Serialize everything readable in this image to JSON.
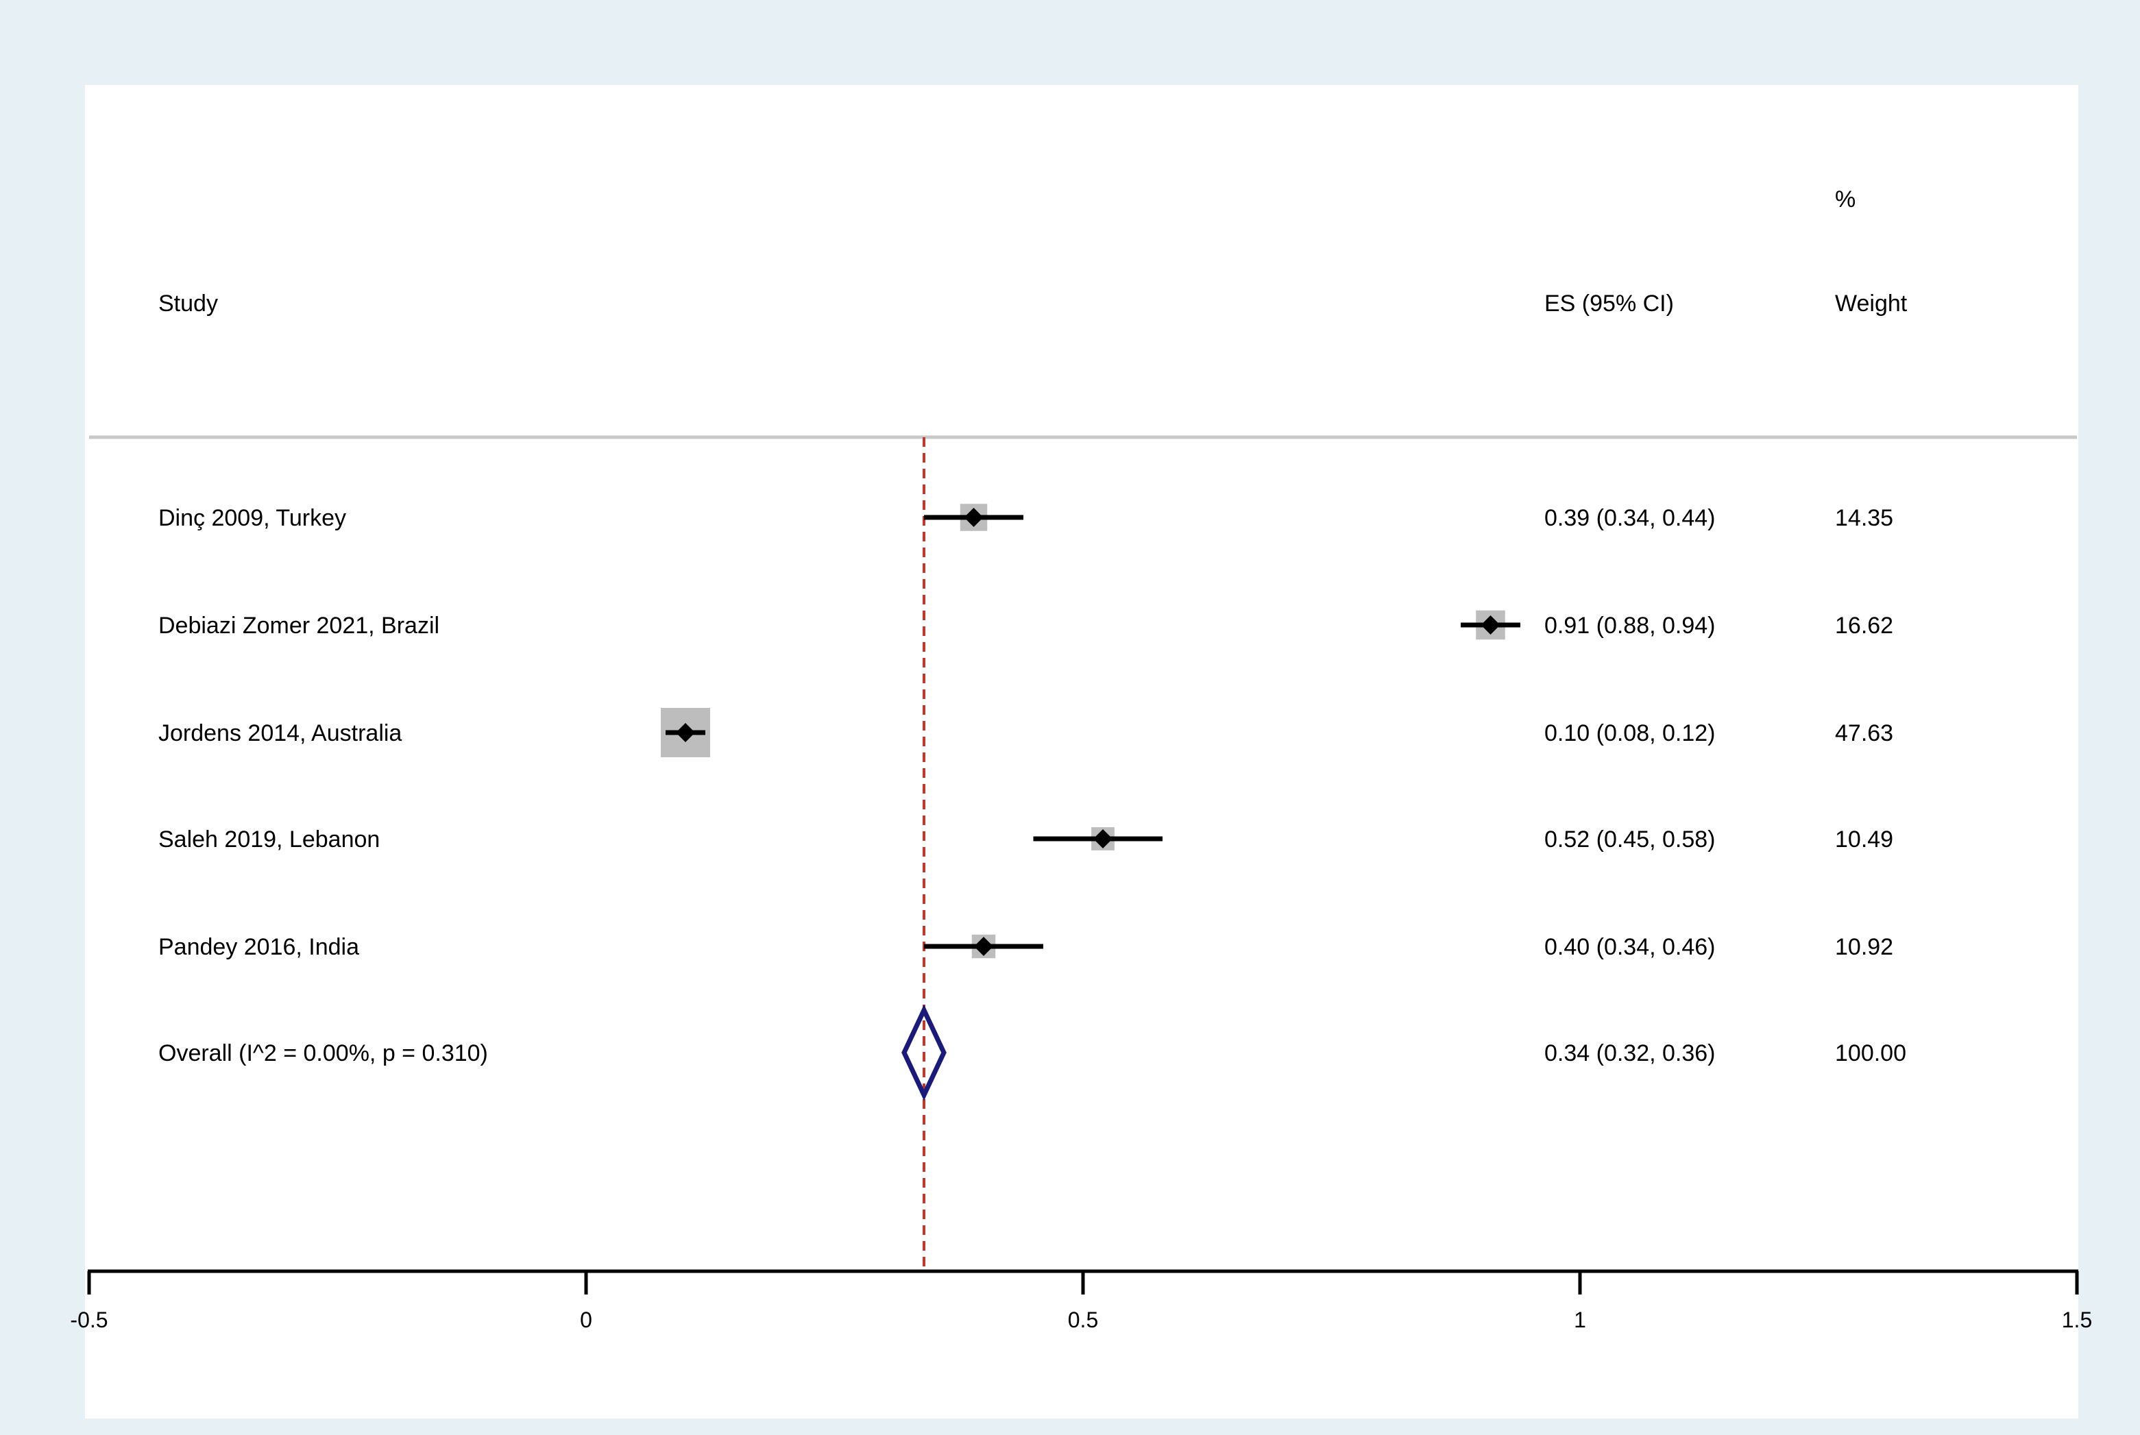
{
  "chart_data": {
    "type": "forest",
    "headers": {
      "study": "Study",
      "es": "ES (95% CI)",
      "weight_top": "%",
      "weight_bottom": "Weight"
    },
    "studies": [
      {
        "label": "Dinç 2009, Turkey",
        "es": 0.39,
        "lo": 0.34,
        "hi": 0.44,
        "es_text": "0.39 (0.34, 0.44)",
        "weight": 14.35,
        "weight_text": "14.35"
      },
      {
        "label": "Debiazi Zomer 2021, Brazil",
        "es": 0.91,
        "lo": 0.88,
        "hi": 0.94,
        "es_text": "0.91 (0.88, 0.94)",
        "weight": 16.62,
        "weight_text": "16.62"
      },
      {
        "label": "Jordens 2014, Australia",
        "es": 0.1,
        "lo": 0.08,
        "hi": 0.12,
        "es_text": "0.10 (0.08, 0.12)",
        "weight": 47.63,
        "weight_text": "47.63"
      },
      {
        "label": "Saleh 2019, Lebanon",
        "es": 0.52,
        "lo": 0.45,
        "hi": 0.58,
        "es_text": "0.52 (0.45, 0.58)",
        "weight": 10.49,
        "weight_text": "10.49"
      },
      {
        "label": "Pandey 2016, India",
        "es": 0.4,
        "lo": 0.34,
        "hi": 0.46,
        "es_text": "0.40 (0.34, 0.46)",
        "weight": 10.92,
        "weight_text": "10.92"
      }
    ],
    "overall": {
      "label": "Overall  (I^2 = 0.00%, p = 0.310)",
      "es": 0.34,
      "lo": 0.32,
      "hi": 0.36,
      "es_text": "0.34 (0.32, 0.36)",
      "weight_text": "100.00"
    },
    "x_ticks": [
      -0.5,
      0,
      0.5,
      1,
      1.5
    ],
    "x_tick_labels": [
      "-0.5",
      "0",
      "0.5",
      "1",
      "1.5"
    ],
    "xlim": [
      -0.5,
      1.5
    ],
    "reference_line": 0.34,
    "colors": {
      "outer_background": "#e6f0f5",
      "plot_background": "#ffffff",
      "weight_box": "#bdbdbd",
      "point": "#000000",
      "ci_line": "#000000",
      "overall_diamond": "#1a1a7a",
      "reference_line": "#c0392b",
      "header_rule": "#c8c8c8",
      "axis": "#000000"
    }
  }
}
